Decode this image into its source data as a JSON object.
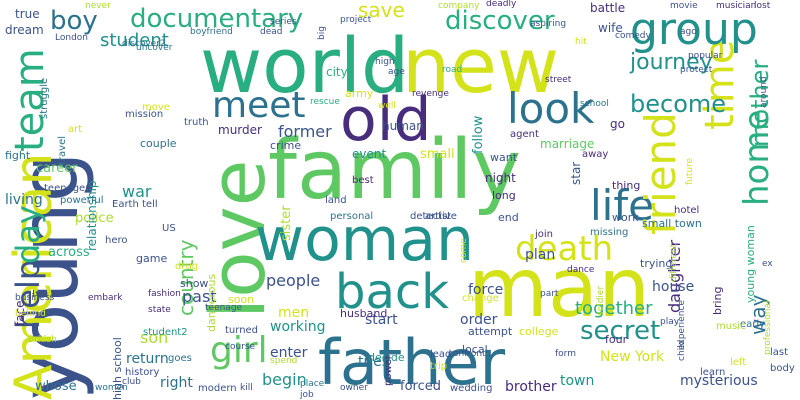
{
  "background": "#ffffff",
  "palette": {
    "purple": "#472d7b",
    "indigo": "#3b528b",
    "blue": "#2c728e",
    "teal": "#21918c",
    "seagreen": "#28ae80",
    "green": "#5ec962",
    "lime": "#addc30",
    "yellow": "#d4e21a"
  },
  "words": [
    {
      "text": "family",
      "color": "#5ec962",
      "vertical": false
    },
    {
      "text": "man",
      "color": "#d4e21a",
      "vertical": false
    },
    {
      "text": "young",
      "color": "#3b528b",
      "vertical": true
    },
    {
      "text": "world",
      "color": "#28ae80",
      "vertical": false
    },
    {
      "text": "new",
      "color": "#d4e21a",
      "vertical": false
    },
    {
      "text": "love",
      "color": "#5ec962",
      "vertical": true
    },
    {
      "text": "father",
      "color": "#2c728e",
      "vertical": false
    },
    {
      "text": "woman",
      "color": "#21918c",
      "vertical": false
    },
    {
      "text": "old",
      "color": "#472d7b",
      "vertical": false
    },
    {
      "text": "American",
      "color": "#d4e21a",
      "vertical": true
    },
    {
      "text": "life",
      "color": "#2c728e",
      "vertical": false
    },
    {
      "text": "friend",
      "color": "#d4e21a",
      "vertical": true
    },
    {
      "text": "time",
      "color": "#d4e21a",
      "vertical": true
    },
    {
      "text": "back",
      "color": "#21918c",
      "vertical": false
    },
    {
      "text": "team",
      "color": "#28ae80",
      "vertical": true
    },
    {
      "text": "group",
      "color": "#21918c",
      "vertical": false
    },
    {
      "text": "look",
      "color": "#2c728e",
      "vertical": false
    },
    {
      "text": "meet",
      "color": "#2c728e",
      "vertical": false
    },
    {
      "text": "home",
      "color": "#28ae80",
      "vertical": true
    },
    {
      "text": "death",
      "color": "#d4e21a",
      "vertical": false
    },
    {
      "text": "girl",
      "color": "#5ec962",
      "vertical": false
    },
    {
      "text": "help",
      "color": "#3b528b",
      "vertical": true
    },
    {
      "text": "day",
      "color": "#28ae80",
      "vertical": true
    },
    {
      "text": "documentary",
      "color": "#28ae80",
      "vertical": false
    },
    {
      "text": "discover",
      "color": "#28ae80",
      "vertical": false
    },
    {
      "text": "boy",
      "color": "#2c728e",
      "vertical": false
    },
    {
      "text": "become",
      "color": "#21918c",
      "vertical": false
    },
    {
      "text": "mother",
      "color": "#28ae80",
      "vertical": true
    },
    {
      "text": "secret",
      "color": "#21918c",
      "vertical": false
    },
    {
      "text": "way",
      "color": "#2c728e",
      "vertical": true
    },
    {
      "text": "country",
      "color": "#5ec962",
      "vertical": true
    },
    {
      "text": "journey",
      "color": "#21918c",
      "vertical": false
    },
    {
      "text": "student",
      "color": "#21918c",
      "vertical": false
    },
    {
      "text": "save",
      "color": "#d4e21a",
      "vertical": false
    },
    {
      "text": "together",
      "color": "#28ae80",
      "vertical": false
    },
    {
      "text": "son",
      "color": "#addc30",
      "vertical": false
    },
    {
      "text": "people",
      "color": "#3b528b",
      "vertical": false
    },
    {
      "text": "daughter",
      "color": "#472d7b",
      "vertical": true
    },
    {
      "text": "war",
      "color": "#21918c",
      "vertical": false
    },
    {
      "text": "past",
      "color": "#3b528b",
      "vertical": false
    },
    {
      "text": "begin",
      "color": "#21918c",
      "vertical": false
    },
    {
      "text": "return",
      "color": "#2c728e",
      "vertical": false
    },
    {
      "text": "New York",
      "color": "#d4e21a",
      "vertical": false
    },
    {
      "text": "mysterious",
      "color": "#3b528b",
      "vertical": false
    },
    {
      "text": "town",
      "color": "#21918c",
      "vertical": false
    },
    {
      "text": "brother",
      "color": "#472d7b",
      "vertical": false
    },
    {
      "text": "force",
      "color": "#3b528b",
      "vertical": false
    },
    {
      "text": "plan",
      "color": "#3b528b",
      "vertical": false
    },
    {
      "text": "house",
      "color": "#3b528b",
      "vertical": false
    },
    {
      "text": "start",
      "color": "#3b528b",
      "vertical": false
    },
    {
      "text": "order",
      "color": "#3b528b",
      "vertical": false
    },
    {
      "text": "tries",
      "color": "#2c728e",
      "vertical": false
    },
    {
      "text": "working",
      "color": "#21918c",
      "vertical": false
    },
    {
      "text": "former",
      "color": "#3b528b",
      "vertical": false
    },
    {
      "text": "men",
      "color": "#d4e21a",
      "vertical": false
    },
    {
      "text": "right",
      "color": "#2c728e",
      "vertical": false
    },
    {
      "text": "whose",
      "color": "#2c728e",
      "vertical": false
    },
    {
      "text": "enter",
      "color": "#3b528b",
      "vertical": false
    },
    {
      "text": "living",
      "color": "#2c728e",
      "vertical": false
    },
    {
      "text": "police",
      "color": "#addc30",
      "vertical": false
    },
    {
      "text": "marriage",
      "color": "#5ec962",
      "vertical": false
    },
    {
      "text": "human",
      "color": "#3b528b",
      "vertical": false
    },
    {
      "text": "follow",
      "color": "#21918c",
      "vertical": true
    },
    {
      "text": "sister",
      "color": "#addc30",
      "vertical": true
    },
    {
      "text": "forced",
      "color": "#3b528b",
      "vertical": false
    },
    {
      "text": "career",
      "color": "#5ec962",
      "vertical": false
    },
    {
      "text": "relationship",
      "color": "#21918c",
      "vertical": true
    },
    {
      "text": "small",
      "color": "#d4e21a",
      "vertical": false
    },
    {
      "text": "event",
      "color": "#21918c",
      "vertical": false
    },
    {
      "text": "night",
      "color": "#472d7b",
      "vertical": false
    },
    {
      "text": "go",
      "color": "#472d7b",
      "vertical": false
    },
    {
      "text": "wife",
      "color": "#3b528b",
      "vertical": false
    },
    {
      "text": "battle",
      "color": "#472d7b",
      "vertical": false
    },
    {
      "text": "true",
      "color": "#3b528b",
      "vertical": false
    },
    {
      "text": "dream",
      "color": "#3b528b",
      "vertical": false
    },
    {
      "text": "city",
      "color": "#28ae80",
      "vertical": false
    },
    {
      "text": "murder",
      "color": "#472d7b",
      "vertical": false
    },
    {
      "text": "couple",
      "color": "#2c728e",
      "vertical": false
    },
    {
      "text": "crime",
      "color": "#3b528b",
      "vertical": false
    },
    {
      "text": "army",
      "color": "#d4e21a",
      "vertical": false
    },
    {
      "text": "high school",
      "color": "#3b528b",
      "vertical": true
    },
    {
      "text": "fight",
      "color": "#2c728e",
      "vertical": false
    },
    {
      "text": "face",
      "color": "#472d7b",
      "vertical": true
    },
    {
      "text": "across",
      "color": "#28ae80",
      "vertical": false
    },
    {
      "text": "dangerous",
      "color": "#addc30",
      "vertical": true
    },
    {
      "text": "game",
      "color": "#3b528b",
      "vertical": false
    },
    {
      "text": "show",
      "color": "#3b528b",
      "vertical": false
    },
    {
      "text": "soon",
      "color": "#d4e21a",
      "vertical": false
    },
    {
      "text": "husband",
      "color": "#472d7b",
      "vertical": false
    },
    {
      "text": "decide",
      "color": "#21918c",
      "vertical": false
    },
    {
      "text": "local",
      "color": "#3b528b",
      "vertical": false
    },
    {
      "text": "end",
      "color": "#3b528b",
      "vertical": false
    },
    {
      "text": "long",
      "color": "#472d7b",
      "vertical": false
    },
    {
      "text": "want",
      "color": "#3b528b",
      "vertical": false
    },
    {
      "text": "thing",
      "color": "#472d7b",
      "vertical": false
    },
    {
      "text": "work",
      "color": "#3b528b",
      "vertical": false
    },
    {
      "text": "small town",
      "color": "#2c728e",
      "vertical": false
    },
    {
      "text": "young woman",
      "color": "#28ae80",
      "vertical": true
    },
    {
      "text": "trying",
      "color": "#3b528b",
      "vertical": false
    },
    {
      "text": "bring",
      "color": "#472d7b",
      "vertical": true
    },
    {
      "text": "four",
      "color": "#472d7b",
      "vertical": false
    },
    {
      "text": "attempt",
      "color": "#3b528b",
      "vertical": false
    },
    {
      "text": "college",
      "color": "#d4e21a",
      "vertical": false
    },
    {
      "text": "wedding",
      "color": "#3b528b",
      "vertical": false
    },
    {
      "text": "goes",
      "color": "#2c728e",
      "vertical": false
    },
    {
      "text": "history",
      "color": "#3b528b",
      "vertical": false
    },
    {
      "text": "modern",
      "color": "#3b528b",
      "vertical": false
    },
    {
      "text": "power",
      "color": "#472d7b",
      "vertical": true
    },
    {
      "text": "change",
      "color": "#d4e21a",
      "vertical": false
    },
    {
      "text": "student2",
      "color": "#21918c",
      "vertical": false
    },
    {
      "text": "turned",
      "color": "#3b528b",
      "vertical": false
    },
    {
      "text": "early",
      "color": "#2c728e",
      "vertical": false
    },
    {
      "text": "last",
      "color": "#3b528b",
      "vertical": false
    },
    {
      "text": "body",
      "color": "#3b528b",
      "vertical": false
    },
    {
      "text": "music",
      "color": "#addc30",
      "vertical": false
    },
    {
      "text": "left",
      "color": "#d4e21a",
      "vertical": false
    },
    {
      "text": "learn",
      "color": "#3b528b",
      "vertical": false
    },
    {
      "text": "lead",
      "color": "#3b528b",
      "vertical": false
    },
    {
      "text": "trip",
      "color": "#d4e21a",
      "vertical": false
    },
    {
      "text": "hotel",
      "color": "#472d7b",
      "vertical": false
    },
    {
      "text": "join",
      "color": "#472d7b",
      "vertical": false
    },
    {
      "text": "missing",
      "color": "#2c728e",
      "vertical": false
    },
    {
      "text": "artist",
      "color": "#3b528b",
      "vertical": false
    },
    {
      "text": "detective",
      "color": "#3b528b",
      "vertical": false
    },
    {
      "text": "personal",
      "color": "#2c728e",
      "vertical": false
    },
    {
      "text": "land",
      "color": "#3b528b",
      "vertical": false
    },
    {
      "text": "best",
      "color": "#472d7b",
      "vertical": false
    },
    {
      "text": "star",
      "color": "#3b528b",
      "vertical": true
    },
    {
      "text": "agent",
      "color": "#472d7b",
      "vertical": false
    },
    {
      "text": "away",
      "color": "#472d7b",
      "vertical": false
    },
    {
      "text": "mission",
      "color": "#3b528b",
      "vertical": false
    },
    {
      "text": "truth",
      "color": "#3b528b",
      "vertical": false
    },
    {
      "text": "move",
      "color": "#d4e21a",
      "vertical": false
    },
    {
      "text": "art",
      "color": "#d4e21a",
      "vertical": false
    },
    {
      "text": "struggle",
      "color": "#2c728e",
      "vertical": true
    },
    {
      "text": "travel",
      "color": "#2c728e",
      "vertical": true
    },
    {
      "text": "teenager",
      "color": "#3b528b",
      "vertical": false
    },
    {
      "text": "powerful",
      "color": "#2c728e",
      "vertical": false
    },
    {
      "text": "Earth",
      "color": "#3b528b",
      "vertical": false
    },
    {
      "text": "tell",
      "color": "#3b528b",
      "vertical": false
    },
    {
      "text": "US",
      "color": "#3b528b",
      "vertical": false
    },
    {
      "text": "hero",
      "color": "#3b528b",
      "vertical": false
    },
    {
      "text": "drug",
      "color": "#d4e21a",
      "vertical": false
    },
    {
      "text": "business",
      "color": "#3b528b",
      "vertical": false
    },
    {
      "text": "behind",
      "color": "#d4e21a",
      "vertical": false
    },
    {
      "text": "British",
      "color": "#addc30",
      "vertical": false
    },
    {
      "text": "embark",
      "color": "#472d7b",
      "vertical": false
    },
    {
      "text": "state",
      "color": "#472d7b",
      "vertical": false
    },
    {
      "text": "teenage",
      "color": "#3b528b",
      "vertical": false
    },
    {
      "text": "fashion",
      "color": "#472d7b",
      "vertical": false
    },
    {
      "text": "club",
      "color": "#3b528b",
      "vertical": false
    },
    {
      "text": "women",
      "color": "#2c728e",
      "vertical": false
    },
    {
      "text": "course",
      "color": "#3b528b",
      "vertical": false
    },
    {
      "text": "spend",
      "color": "#addc30",
      "vertical": false
    },
    {
      "text": "kill",
      "color": "#3b528b",
      "vertical": false
    },
    {
      "text": "owner",
      "color": "#3b528b",
      "vertical": false
    },
    {
      "text": "job",
      "color": "#3b528b",
      "vertical": false
    },
    {
      "text": "place",
      "color": "#2c728e",
      "vertical": false
    },
    {
      "text": "confront",
      "color": "#3b528b",
      "vertical": false
    },
    {
      "text": "form",
      "color": "#3b528b",
      "vertical": false
    },
    {
      "text": "part",
      "color": "#3b528b",
      "vertical": false
    },
    {
      "text": "soldier",
      "color": "#addc30",
      "vertical": true
    },
    {
      "text": "ex",
      "color": "#3b528b",
      "vertical": false
    },
    {
      "text": "play",
      "color": "#3b528b",
      "vertical": false
    },
    {
      "text": "child",
      "color": "#3b528b",
      "vertical": true
    },
    {
      "text": "professional",
      "color": "#addc30",
      "vertical": true
    },
    {
      "text": "experience",
      "color": "#3b528b",
      "vertical": true
    },
    {
      "text": "different",
      "color": "#addc30",
      "vertical": true
    },
    {
      "text": "dance",
      "color": "#472d7b",
      "vertical": false
    },
    {
      "text": "come",
      "color": "#d4e21a",
      "vertical": true
    },
    {
      "text": "future",
      "color": "#d4e21a",
      "vertical": true
    },
    {
      "text": "school",
      "color": "#2c728e",
      "vertical": false
    },
    {
      "text": "street",
      "color": "#472d7b",
      "vertical": false
    },
    {
      "text": "protect",
      "color": "#3b528b",
      "vertical": false
    },
    {
      "text": "popular",
      "color": "#3b528b",
      "vertical": false
    },
    {
      "text": "around",
      "color": "#3b528b",
      "vertical": true
    },
    {
      "text": "lost",
      "color": "#472d7b",
      "vertical": false
    },
    {
      "text": "musician",
      "color": "#472d7b",
      "vertical": false
    },
    {
      "text": "movie",
      "color": "#3b528b",
      "vertical": false
    },
    {
      "text": "ago",
      "color": "#3b528b",
      "vertical": false
    },
    {
      "text": "comedy",
      "color": "#3b528b",
      "vertical": false
    },
    {
      "text": "hit",
      "color": "#d4e21a",
      "vertical": false
    },
    {
      "text": "aspiring",
      "color": "#3b528b",
      "vertical": false
    },
    {
      "text": "deadly",
      "color": "#472d7b",
      "vertical": false
    },
    {
      "text": "company",
      "color": "#addc30",
      "vertical": false
    },
    {
      "text": "project",
      "color": "#3b528b",
      "vertical": false
    },
    {
      "text": "high",
      "color": "#3b528b",
      "vertical": false
    },
    {
      "text": "age",
      "color": "#3b528b",
      "vertical": false
    },
    {
      "text": "rescue",
      "color": "#28ae80",
      "vertical": false
    },
    {
      "text": "revenge",
      "color": "#472d7b",
      "vertical": false
    },
    {
      "text": "well",
      "color": "#d4e21a",
      "vertical": false
    },
    {
      "text": "road",
      "color": "#28ae80",
      "vertical": false
    },
    {
      "text": "big",
      "color": "#3b528b",
      "vertical": true
    },
    {
      "text": "dead",
      "color": "#3b528b",
      "vertical": false
    },
    {
      "text": "series",
      "color": "#3b528b",
      "vertical": false
    },
    {
      "text": "boyfriend",
      "color": "#2c728e",
      "vertical": false
    },
    {
      "text": "London",
      "color": "#3b528b",
      "vertical": false
    },
    {
      "text": "discover2",
      "color": "#2c728e",
      "vertical": false
    },
    {
      "text": "never",
      "color": "#addc30",
      "vertical": false
    },
    {
      "text": "uncover",
      "color": "#2c728e",
      "vertical": false
    }
  ]
}
